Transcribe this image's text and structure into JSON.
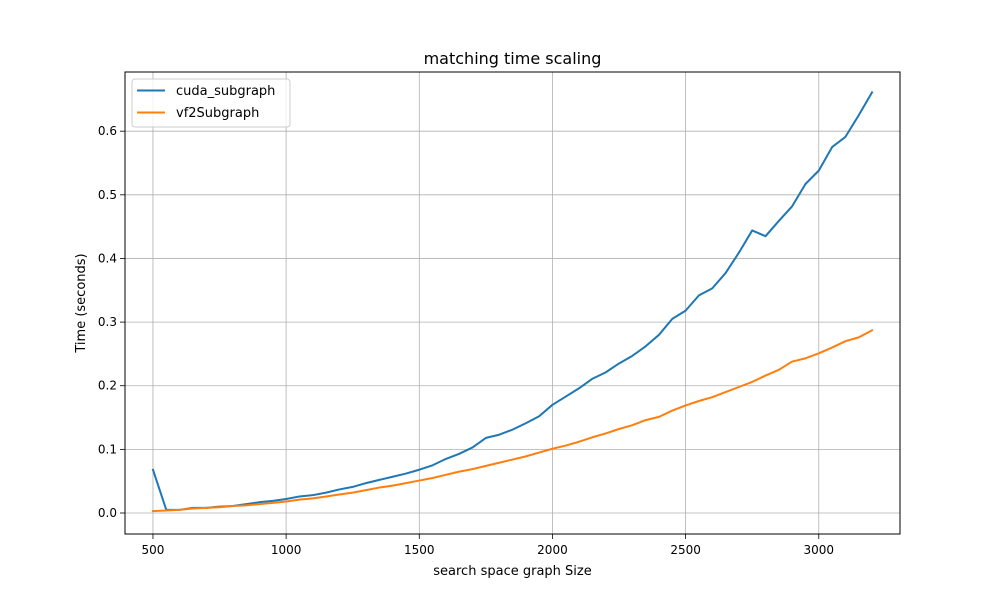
{
  "chart_data": {
    "type": "line",
    "title": "matching time scaling",
    "xlabel": "search space graph Size",
    "ylabel": "Time (seconds)",
    "xlim": [
      395,
      3305
    ],
    "ylim": [
      -0.033,
      0.693
    ],
    "xticks": [
      500,
      1000,
      1500,
      2000,
      2500,
      3000
    ],
    "yticks": [
      0.0,
      0.1,
      0.2,
      0.3,
      0.4,
      0.5,
      0.6
    ],
    "ytick_labels": [
      "0.0",
      "0.1",
      "0.2",
      "0.3",
      "0.4",
      "0.5",
      "0.6"
    ],
    "grid": true,
    "legend_position": "upper-left",
    "x": [
      500,
      550,
      600,
      650,
      700,
      750,
      800,
      850,
      900,
      950,
      1000,
      1050,
      1100,
      1150,
      1200,
      1250,
      1300,
      1350,
      1400,
      1450,
      1500,
      1550,
      1600,
      1650,
      1700,
      1750,
      1800,
      1850,
      1900,
      1950,
      2000,
      2050,
      2100,
      2150,
      2200,
      2250,
      2300,
      2350,
      2400,
      2450,
      2500,
      2550,
      2600,
      2650,
      2700,
      2750,
      2800,
      2850,
      2900,
      2950,
      3000,
      3050,
      3100,
      3150,
      3200
    ],
    "series": [
      {
        "name": "cuda_subgraph",
        "color": "#1f77b4",
        "values": [
          0.068,
          0.005,
          0.005,
          0.008,
          0.008,
          0.01,
          0.011,
          0.014,
          0.017,
          0.019,
          0.022,
          0.026,
          0.028,
          0.032,
          0.037,
          0.041,
          0.047,
          0.052,
          0.057,
          0.062,
          0.068,
          0.075,
          0.085,
          0.093,
          0.103,
          0.118,
          0.123,
          0.131,
          0.141,
          0.152,
          0.17,
          0.183,
          0.196,
          0.211,
          0.221,
          0.235,
          0.247,
          0.262,
          0.28,
          0.305,
          0.318,
          0.342,
          0.353,
          0.377,
          0.409,
          0.444,
          0.435,
          0.459,
          0.482,
          0.517,
          0.538,
          0.575,
          0.591,
          0.625,
          0.661
        ]
      },
      {
        "name": "vf2Subgraph",
        "color": "#ff7f0e",
        "values": [
          0.003,
          0.004,
          0.005,
          0.007,
          0.008,
          0.009,
          0.011,
          0.012,
          0.014,
          0.016,
          0.018,
          0.021,
          0.023,
          0.026,
          0.029,
          0.032,
          0.036,
          0.04,
          0.043,
          0.047,
          0.051,
          0.055,
          0.06,
          0.065,
          0.069,
          0.074,
          0.079,
          0.084,
          0.089,
          0.095,
          0.101,
          0.106,
          0.112,
          0.119,
          0.125,
          0.132,
          0.138,
          0.146,
          0.151,
          0.161,
          0.169,
          0.176,
          0.182,
          0.19,
          0.198,
          0.206,
          0.216,
          0.225,
          0.238,
          0.243,
          0.251,
          0.26,
          0.27,
          0.276,
          0.287
        ]
      }
    ]
  }
}
